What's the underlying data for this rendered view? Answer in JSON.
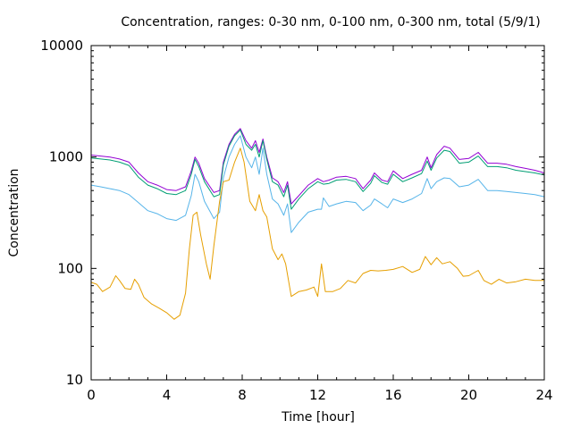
{
  "chart_data": {
    "type": "line",
    "title": "Concentration, ranges: 0-30 nm, 0-100 nm, 0-300 nm, total (5/9/1)",
    "xlabel": "Time [hour]",
    "ylabel": "Concentration",
    "xlim": [
      0,
      24
    ],
    "ylim": [
      10,
      10000
    ],
    "yscale": "log",
    "x_ticks": [
      0,
      4,
      8,
      12,
      16,
      20,
      24
    ],
    "x_tick_labels": [
      "0",
      "4",
      "8",
      "12",
      "16",
      "20",
      "24"
    ],
    "y_ticks": [
      10,
      100,
      1000,
      10000
    ],
    "y_tick_labels": [
      "10",
      "100",
      "1000",
      "10000"
    ],
    "grid": false,
    "legend": "none",
    "series": [
      {
        "name": "total",
        "color": "#9400d3",
        "points": [
          [
            0,
            1040
          ],
          [
            0.5,
            1020
          ],
          [
            1,
            1000
          ],
          [
            1.5,
            960
          ],
          [
            2,
            900
          ],
          [
            2.5,
            720
          ],
          [
            3,
            600
          ],
          [
            3.5,
            560
          ],
          [
            4,
            510
          ],
          [
            4.5,
            500
          ],
          [
            5,
            540
          ],
          [
            5.3,
            750
          ],
          [
            5.5,
            1000
          ],
          [
            5.7,
            880
          ],
          [
            6,
            640
          ],
          [
            6.5,
            480
          ],
          [
            6.8,
            500
          ],
          [
            7,
            900
          ],
          [
            7.3,
            1300
          ],
          [
            7.6,
            1600
          ],
          [
            7.9,
            1800
          ],
          [
            8.2,
            1400
          ],
          [
            8.5,
            1200
          ],
          [
            8.7,
            1400
          ],
          [
            8.9,
            1100
          ],
          [
            9.1,
            1450
          ],
          [
            9.3,
            1000
          ],
          [
            9.6,
            650
          ],
          [
            9.9,
            600
          ],
          [
            10.2,
            480
          ],
          [
            10.4,
            600
          ],
          [
            10.6,
            380
          ],
          [
            11,
            450
          ],
          [
            11.5,
            560
          ],
          [
            12,
            640
          ],
          [
            12.3,
            600
          ],
          [
            12.6,
            620
          ],
          [
            13,
            660
          ],
          [
            13.5,
            670
          ],
          [
            14,
            640
          ],
          [
            14.4,
            520
          ],
          [
            14.8,
            620
          ],
          [
            15,
            720
          ],
          [
            15.4,
            620
          ],
          [
            15.7,
            600
          ],
          [
            16,
            750
          ],
          [
            16.5,
            640
          ],
          [
            17,
            700
          ],
          [
            17.5,
            760
          ],
          [
            17.8,
            1000
          ],
          [
            18,
            800
          ],
          [
            18.3,
            1050
          ],
          [
            18.7,
            1250
          ],
          [
            19,
            1200
          ],
          [
            19.5,
            950
          ],
          [
            20,
            970
          ],
          [
            20.5,
            1100
          ],
          [
            21,
            880
          ],
          [
            21.5,
            880
          ],
          [
            22,
            860
          ],
          [
            22.5,
            820
          ],
          [
            23,
            790
          ],
          [
            23.5,
            760
          ],
          [
            24,
            720
          ]
        ]
      },
      {
        "name": "0-300 nm",
        "color": "#009e73",
        "points": [
          [
            0,
            980
          ],
          [
            0.5,
            960
          ],
          [
            1,
            940
          ],
          [
            1.5,
            900
          ],
          [
            2,
            840
          ],
          [
            2.5,
            660
          ],
          [
            3,
            560
          ],
          [
            3.5,
            520
          ],
          [
            4,
            470
          ],
          [
            4.5,
            460
          ],
          [
            5,
            500
          ],
          [
            5.3,
            700
          ],
          [
            5.5,
            950
          ],
          [
            5.7,
            820
          ],
          [
            6,
            600
          ],
          [
            6.5,
            440
          ],
          [
            6.8,
            460
          ],
          [
            7,
            850
          ],
          [
            7.3,
            1250
          ],
          [
            7.6,
            1550
          ],
          [
            7.9,
            1750
          ],
          [
            8.2,
            1300
          ],
          [
            8.5,
            1150
          ],
          [
            8.7,
            1300
          ],
          [
            8.9,
            1000
          ],
          [
            9.1,
            1400
          ],
          [
            9.3,
            950
          ],
          [
            9.6,
            600
          ],
          [
            9.9,
            560
          ],
          [
            10.2,
            440
          ],
          [
            10.4,
            560
          ],
          [
            10.6,
            340
          ],
          [
            11,
            420
          ],
          [
            11.5,
            520
          ],
          [
            12,
            600
          ],
          [
            12.3,
            570
          ],
          [
            12.6,
            580
          ],
          [
            13,
            620
          ],
          [
            13.5,
            630
          ],
          [
            14,
            600
          ],
          [
            14.4,
            490
          ],
          [
            14.8,
            580
          ],
          [
            15,
            680
          ],
          [
            15.4,
            590
          ],
          [
            15.7,
            570
          ],
          [
            16,
            700
          ],
          [
            16.5,
            600
          ],
          [
            17,
            650
          ],
          [
            17.5,
            710
          ],
          [
            17.8,
            920
          ],
          [
            18,
            760
          ],
          [
            18.3,
            980
          ],
          [
            18.7,
            1150
          ],
          [
            19,
            1120
          ],
          [
            19.5,
            880
          ],
          [
            20,
            900
          ],
          [
            20.5,
            1020
          ],
          [
            21,
            820
          ],
          [
            21.5,
            820
          ],
          [
            22,
            800
          ],
          [
            22.5,
            760
          ],
          [
            23,
            740
          ],
          [
            23.5,
            720
          ],
          [
            24,
            690
          ]
        ]
      },
      {
        "name": "0-100 nm",
        "color": "#56b4e9",
        "points": [
          [
            0,
            560
          ],
          [
            0.5,
            540
          ],
          [
            1,
            520
          ],
          [
            1.5,
            500
          ],
          [
            2,
            460
          ],
          [
            2.5,
            390
          ],
          [
            3,
            330
          ],
          [
            3.5,
            310
          ],
          [
            4,
            280
          ],
          [
            4.5,
            270
          ],
          [
            5,
            300
          ],
          [
            5.3,
            450
          ],
          [
            5.5,
            700
          ],
          [
            5.7,
            600
          ],
          [
            6,
            400
          ],
          [
            6.5,
            280
          ],
          [
            6.8,
            320
          ],
          [
            7,
            650
          ],
          [
            7.3,
            1000
          ],
          [
            7.6,
            1300
          ],
          [
            7.9,
            1550
          ],
          [
            8.2,
            1000
          ],
          [
            8.5,
            800
          ],
          [
            8.7,
            1000
          ],
          [
            8.9,
            700
          ],
          [
            9.1,
            1200
          ],
          [
            9.3,
            700
          ],
          [
            9.6,
            420
          ],
          [
            9.9,
            380
          ],
          [
            10.2,
            300
          ],
          [
            10.4,
            380
          ],
          [
            10.6,
            210
          ],
          [
            11,
            260
          ],
          [
            11.5,
            320
          ],
          [
            12,
            340
          ],
          [
            12.2,
            340
          ],
          [
            12.3,
            430
          ],
          [
            12.6,
            360
          ],
          [
            13,
            380
          ],
          [
            13.5,
            400
          ],
          [
            14,
            390
          ],
          [
            14.4,
            330
          ],
          [
            14.8,
            370
          ],
          [
            15,
            420
          ],
          [
            15.4,
            380
          ],
          [
            15.7,
            350
          ],
          [
            16,
            420
          ],
          [
            16.5,
            390
          ],
          [
            17,
            420
          ],
          [
            17.5,
            470
          ],
          [
            17.8,
            640
          ],
          [
            18,
            520
          ],
          [
            18.3,
            600
          ],
          [
            18.7,
            650
          ],
          [
            19,
            640
          ],
          [
            19.5,
            540
          ],
          [
            20,
            560
          ],
          [
            20.5,
            630
          ],
          [
            21,
            500
          ],
          [
            21.5,
            500
          ],
          [
            22,
            490
          ],
          [
            22.5,
            480
          ],
          [
            23,
            470
          ],
          [
            23.5,
            460
          ],
          [
            24,
            440
          ]
        ]
      },
      {
        "name": "0-30 nm",
        "color": "#e69f00",
        "points": [
          [
            0,
            75
          ],
          [
            0.3,
            72
          ],
          [
            0.6,
            62
          ],
          [
            1,
            68
          ],
          [
            1.3,
            86
          ],
          [
            1.5,
            78
          ],
          [
            1.8,
            66
          ],
          [
            2.1,
            65
          ],
          [
            2.3,
            80
          ],
          [
            2.5,
            72
          ],
          [
            2.8,
            55
          ],
          [
            3.2,
            48
          ],
          [
            3.6,
            44
          ],
          [
            4,
            40
          ],
          [
            4.4,
            35
          ],
          [
            4.7,
            38
          ],
          [
            5,
            60
          ],
          [
            5.2,
            150
          ],
          [
            5.4,
            300
          ],
          [
            5.6,
            320
          ],
          [
            5.8,
            200
          ],
          [
            6.1,
            110
          ],
          [
            6.3,
            80
          ],
          [
            6.5,
            160
          ],
          [
            6.8,
            400
          ],
          [
            7,
            600
          ],
          [
            7.3,
            620
          ],
          [
            7.6,
            900
          ],
          [
            7.9,
            1200
          ],
          [
            8.1,
            900
          ],
          [
            8.4,
            400
          ],
          [
            8.7,
            330
          ],
          [
            8.9,
            460
          ],
          [
            9.1,
            330
          ],
          [
            9.3,
            290
          ],
          [
            9.6,
            150
          ],
          [
            9.9,
            120
          ],
          [
            10.1,
            135
          ],
          [
            10.3,
            110
          ],
          [
            10.6,
            56
          ],
          [
            11,
            62
          ],
          [
            11.4,
            64
          ],
          [
            11.8,
            68
          ],
          [
            12,
            56
          ],
          [
            12.2,
            110
          ],
          [
            12.4,
            62
          ],
          [
            12.8,
            62
          ],
          [
            13.2,
            66
          ],
          [
            13.6,
            78
          ],
          [
            14,
            74
          ],
          [
            14.4,
            90
          ],
          [
            14.8,
            96
          ],
          [
            15.2,
            95
          ],
          [
            15.6,
            96
          ],
          [
            16,
            98
          ],
          [
            16.5,
            104
          ],
          [
            17,
            92
          ],
          [
            17.4,
            98
          ],
          [
            17.7,
            128
          ],
          [
            18,
            108
          ],
          [
            18.3,
            125
          ],
          [
            18.6,
            110
          ],
          [
            19,
            115
          ],
          [
            19.4,
            100
          ],
          [
            19.7,
            85
          ],
          [
            20,
            86
          ],
          [
            20.5,
            96
          ],
          [
            20.8,
            78
          ],
          [
            21.2,
            72
          ],
          [
            21.6,
            80
          ],
          [
            22,
            74
          ],
          [
            22.5,
            76
          ],
          [
            23,
            80
          ],
          [
            23.5,
            78
          ],
          [
            24,
            78
          ]
        ]
      }
    ]
  }
}
